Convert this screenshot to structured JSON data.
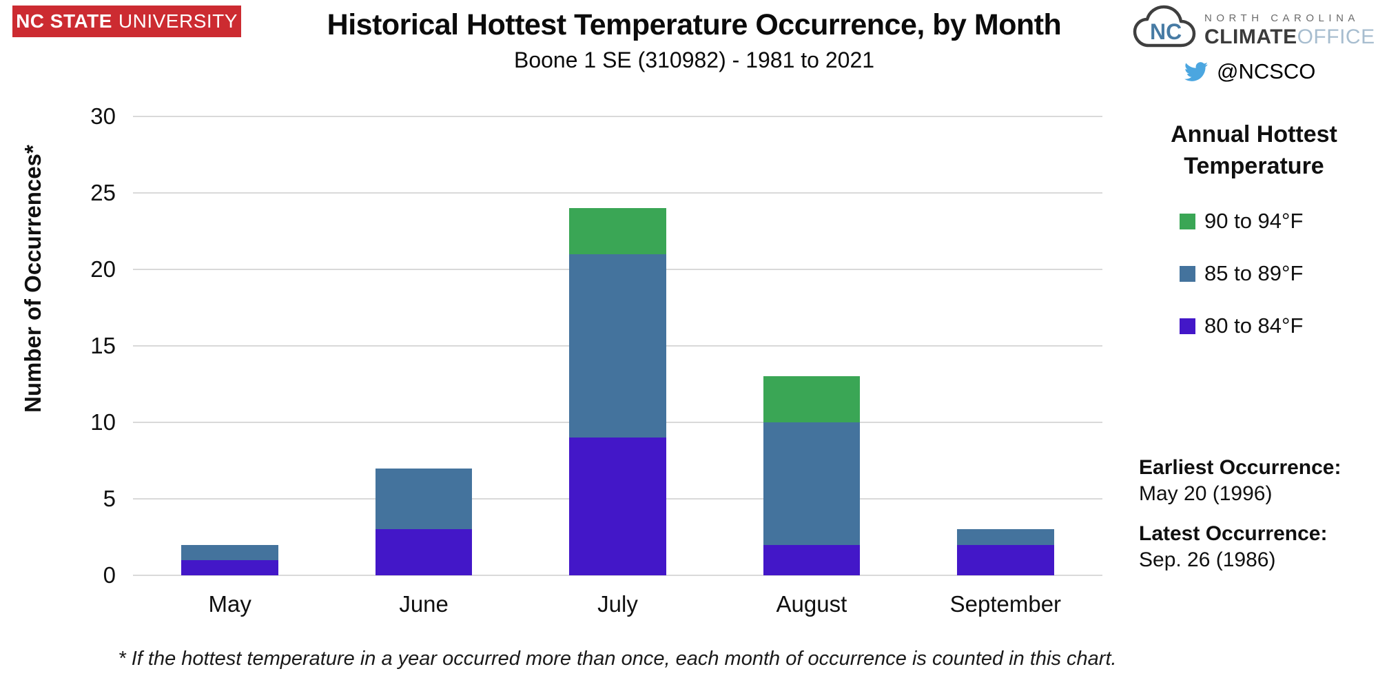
{
  "header": {
    "ncsu_logo": {
      "bold": "NC STATE",
      "regular": "UNIVERSITY"
    },
    "title": "Historical Hottest Temperature Occurrence, by Month",
    "subtitle": "Boone 1 SE (310982) - 1981 to 2021",
    "ncco_logo": {
      "cloud_text": "NC",
      "line1": "NORTH CAROLINA",
      "line2_bold": "CLIMATE",
      "line2_light": "OFFICE"
    },
    "twitter_handle": "@NCSCO"
  },
  "legend": {
    "title_line1": "Annual Hottest",
    "title_line2": "Temperature",
    "items": [
      {
        "label": "90 to 94°F",
        "color": "#3aa655"
      },
      {
        "label": "85 to 89°F",
        "color": "#44739d"
      },
      {
        "label": "80 to 84°F",
        "color": "#4317c8"
      }
    ]
  },
  "side_notes": [
    {
      "label": "Earliest Occurrence:",
      "value": "May 20 (1996)"
    },
    {
      "label": "Latest Occurrence:",
      "value": "Sep. 26 (1986)"
    }
  ],
  "footnote": "* If the hottest temperature in a year occurred more than once, each month of occurrence is counted in this chart.",
  "colors": {
    "ncsu_red": "#cc2b31",
    "twitter_blue": "#4ba6e0",
    "gridline": "#d9d9d9",
    "series_80_84": "#4317c8",
    "series_85_89": "#44739d",
    "series_90_94": "#3aa655"
  },
  "chart_data": {
    "type": "bar",
    "stacked": true,
    "title": "Historical Hottest Temperature Occurrence, by Month",
    "subtitle": "Boone 1 SE (310982) - 1981 to 2021",
    "categories": [
      "May",
      "June",
      "July",
      "August",
      "September"
    ],
    "series": [
      {
        "name": "80 to 84°F",
        "color": "#4317c8",
        "values": [
          1,
          3,
          9,
          2,
          2
        ]
      },
      {
        "name": "85 to 89°F",
        "color": "#44739d",
        "values": [
          1,
          4,
          12,
          8,
          1
        ]
      },
      {
        "name": "90 to 94°F",
        "color": "#3aa655",
        "values": [
          0,
          0,
          3,
          3,
          0
        ]
      }
    ],
    "totals": [
      2,
      7,
      24,
      13,
      3
    ],
    "xlabel": "",
    "ylabel": "Number of Occurrences*",
    "ylim": [
      0,
      30
    ],
    "yticks": [
      0,
      5,
      10,
      15,
      20,
      25,
      30
    ],
    "grid": true,
    "legend_position": "right",
    "legend_title": "Annual Hottest Temperature"
  }
}
